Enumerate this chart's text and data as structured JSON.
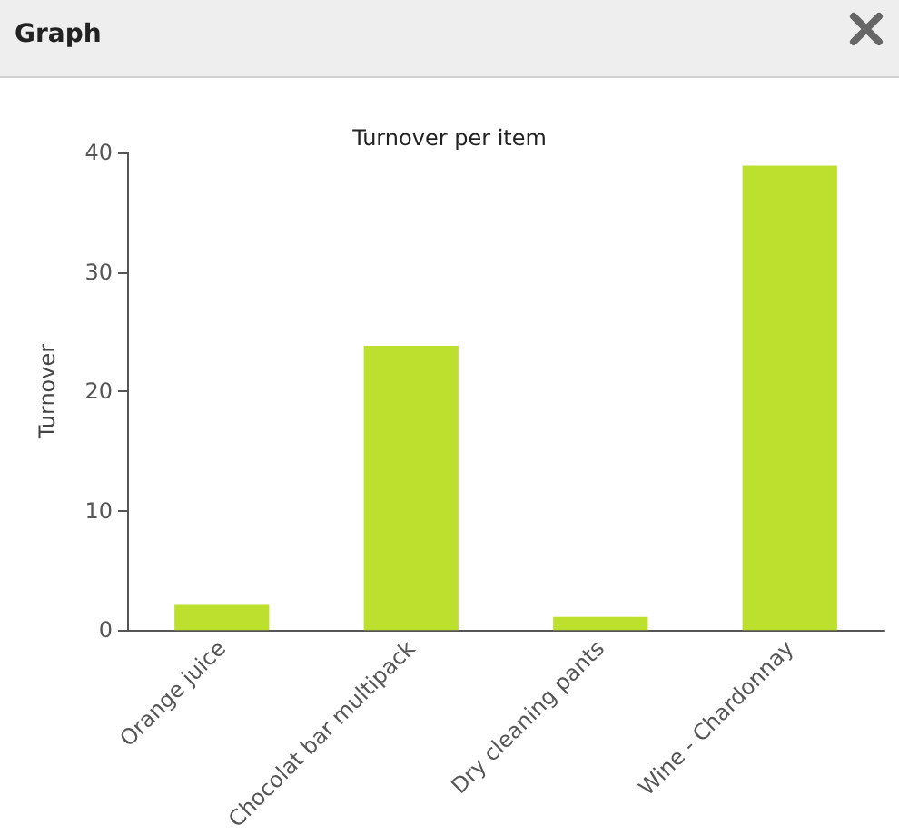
{
  "chart_data": {
    "type": "bar",
    "title": "Graph",
    "subtitle": "Turnover per item",
    "ylabel": "Turnover",
    "categories": [
      "Orange juice",
      "Chocolat bar multipack",
      "Dry cleaning pants",
      "Wine - Chardonnay"
    ],
    "values": [
      2.1,
      23.8,
      1.1,
      38.9
    ],
    "color": "#bde02e",
    "ylim": [
      0,
      40
    ],
    "yticks": [
      0,
      10,
      20,
      30,
      40
    ]
  }
}
